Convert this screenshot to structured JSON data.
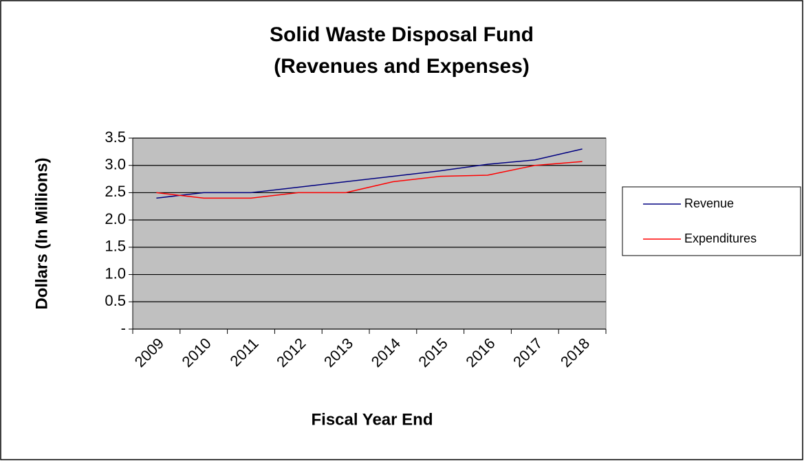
{
  "chart_data": {
    "type": "line",
    "title": "Solid Waste Disposal Fund",
    "subtitle": "(Revenues and Expenses)",
    "x_label": "Fiscal Year End",
    "y_label": "Dollars (In Millions)",
    "categories": [
      "2009",
      "2010",
      "2011",
      "2012",
      "2013",
      "2014",
      "2015",
      "2016",
      "2017",
      "2018"
    ],
    "series": [
      {
        "name": "Revenue",
        "color": "#000080",
        "values": [
          2.4,
          2.5,
          2.5,
          2.6,
          2.7,
          2.8,
          2.9,
          3.02,
          3.1,
          3.3
        ]
      },
      {
        "name": "Expenditures",
        "color": "#ff0000",
        "values": [
          2.5,
          2.4,
          2.4,
          2.5,
          2.5,
          2.7,
          2.8,
          2.82,
          3.0,
          3.07
        ]
      }
    ],
    "ylim": [
      0,
      3.5
    ],
    "yticks": [
      {
        "value": 0,
        "label": "-"
      },
      0.5,
      {
        "value": 1,
        "label": "1.0"
      },
      1.5,
      {
        "value": 2,
        "label": "2.0"
      },
      2.5,
      {
        "value": 3,
        "label": "3.0"
      },
      3.5
    ],
    "grid": true,
    "legend": "right"
  }
}
